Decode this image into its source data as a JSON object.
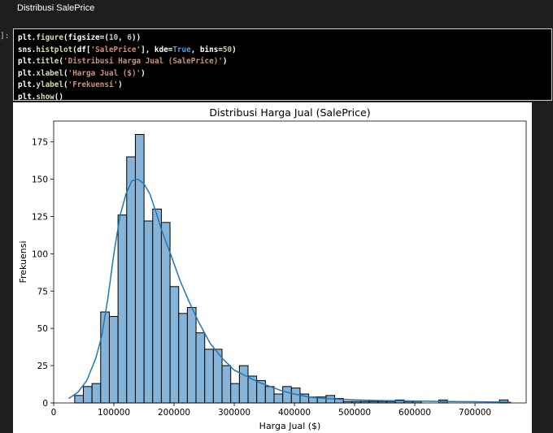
{
  "markdown": {
    "heading": "Distribusi SalePrice"
  },
  "cell": {
    "exec_count": "]:",
    "code_lines": [
      [
        {
          "t": "plt.",
          "c": "tok-plain"
        },
        {
          "t": "figure",
          "c": "tok-fn"
        },
        {
          "t": "(figsize=(",
          "c": "tok-plain"
        },
        {
          "t": "10",
          "c": "tok-num"
        },
        {
          "t": ", ",
          "c": "tok-plain"
        },
        {
          "t": "6",
          "c": "tok-num"
        },
        {
          "t": "))",
          "c": "tok-plain"
        }
      ],
      [
        {
          "t": "sns.",
          "c": "tok-plain"
        },
        {
          "t": "histplot",
          "c": "tok-fn"
        },
        {
          "t": "(df[",
          "c": "tok-plain"
        },
        {
          "t": "'SalePrice'",
          "c": "tok-str"
        },
        {
          "t": "], kde=",
          "c": "tok-plain"
        },
        {
          "t": "True",
          "c": "tok-kw"
        },
        {
          "t": ", bins=",
          "c": "tok-plain"
        },
        {
          "t": "50",
          "c": "tok-num"
        },
        {
          "t": ")",
          "c": "tok-plain"
        }
      ],
      [
        {
          "t": "plt.",
          "c": "tok-plain"
        },
        {
          "t": "title",
          "c": "tok-fn"
        },
        {
          "t": "(",
          "c": "tok-plain"
        },
        {
          "t": "'Distribusi Harga Jual (SalePrice)'",
          "c": "tok-str"
        },
        {
          "t": ")",
          "c": "tok-plain"
        }
      ],
      [
        {
          "t": "plt.",
          "c": "tok-plain"
        },
        {
          "t": "xlabel",
          "c": "tok-fn"
        },
        {
          "t": "(",
          "c": "tok-plain"
        },
        {
          "t": "'Harga Jual ($)'",
          "c": "tok-str"
        },
        {
          "t": ")",
          "c": "tok-plain"
        }
      ],
      [
        {
          "t": "plt.",
          "c": "tok-plain"
        },
        {
          "t": "ylabel",
          "c": "tok-fn"
        },
        {
          "t": "(",
          "c": "tok-plain"
        },
        {
          "t": "'Frekuensi'",
          "c": "tok-str"
        },
        {
          "t": ")",
          "c": "tok-plain"
        }
      ],
      [
        {
          "t": "plt.",
          "c": "tok-plain"
        },
        {
          "t": "show",
          "c": "tok-fn"
        },
        {
          "t": "()",
          "c": "tok-plain"
        }
      ]
    ]
  },
  "colors": {
    "bar_fill": "#86b4d9",
    "bar_stroke": "#000000",
    "kde": "#1f77b4",
    "code_string": "#ce9178",
    "code_number": "#b5cea8",
    "code_keyword": "#569cd6",
    "code_function": "#dcdcaa"
  },
  "chart_data": {
    "type": "bar",
    "title": "Distribusi Harga Jual (SalePrice)",
    "xlabel": "Harga Jual ($)",
    "ylabel": "Frekuensi",
    "xlim": [
      0,
      785000
    ],
    "ylim": [
      0,
      189
    ],
    "xticks": [
      0,
      100000,
      200000,
      300000,
      400000,
      500000,
      600000,
      700000
    ],
    "yticks": [
      0,
      25,
      50,
      75,
      100,
      125,
      150,
      175
    ],
    "grid": false,
    "bin_start": 34900,
    "bin_width": 14402,
    "counts": [
      5,
      11,
      13,
      61,
      58,
      126,
      165,
      180,
      122,
      130,
      121,
      78,
      60,
      64,
      47,
      36,
      36,
      25,
      13,
      25,
      18,
      15,
      11,
      6,
      11,
      10,
      6,
      4,
      4,
      5,
      3,
      1,
      1,
      1,
      1,
      1,
      1,
      2,
      1,
      1,
      0,
      0,
      2,
      0,
      0,
      0,
      0,
      0,
      0,
      2
    ],
    "kde_x": [
      25000,
      40000,
      55000,
      70000,
      80000,
      90000,
      100000,
      110000,
      120000,
      130000,
      140000,
      150000,
      160000,
      170000,
      180000,
      195000,
      210000,
      225000,
      240000,
      260000,
      280000,
      300000,
      320000,
      340000,
      360000,
      380000,
      400000,
      425000,
      450000,
      500000,
      550000,
      600000,
      650000,
      700000,
      760000
    ],
    "kde_y": [
      3,
      7,
      15,
      30,
      45,
      70,
      100,
      125,
      140,
      149,
      150,
      147,
      140,
      128,
      115,
      99,
      82,
      68,
      55,
      40,
      30,
      22,
      18,
      14,
      11,
      8,
      6,
      4,
      3,
      2,
      1.6,
      1.3,
      1,
      0.8,
      0.5
    ]
  }
}
